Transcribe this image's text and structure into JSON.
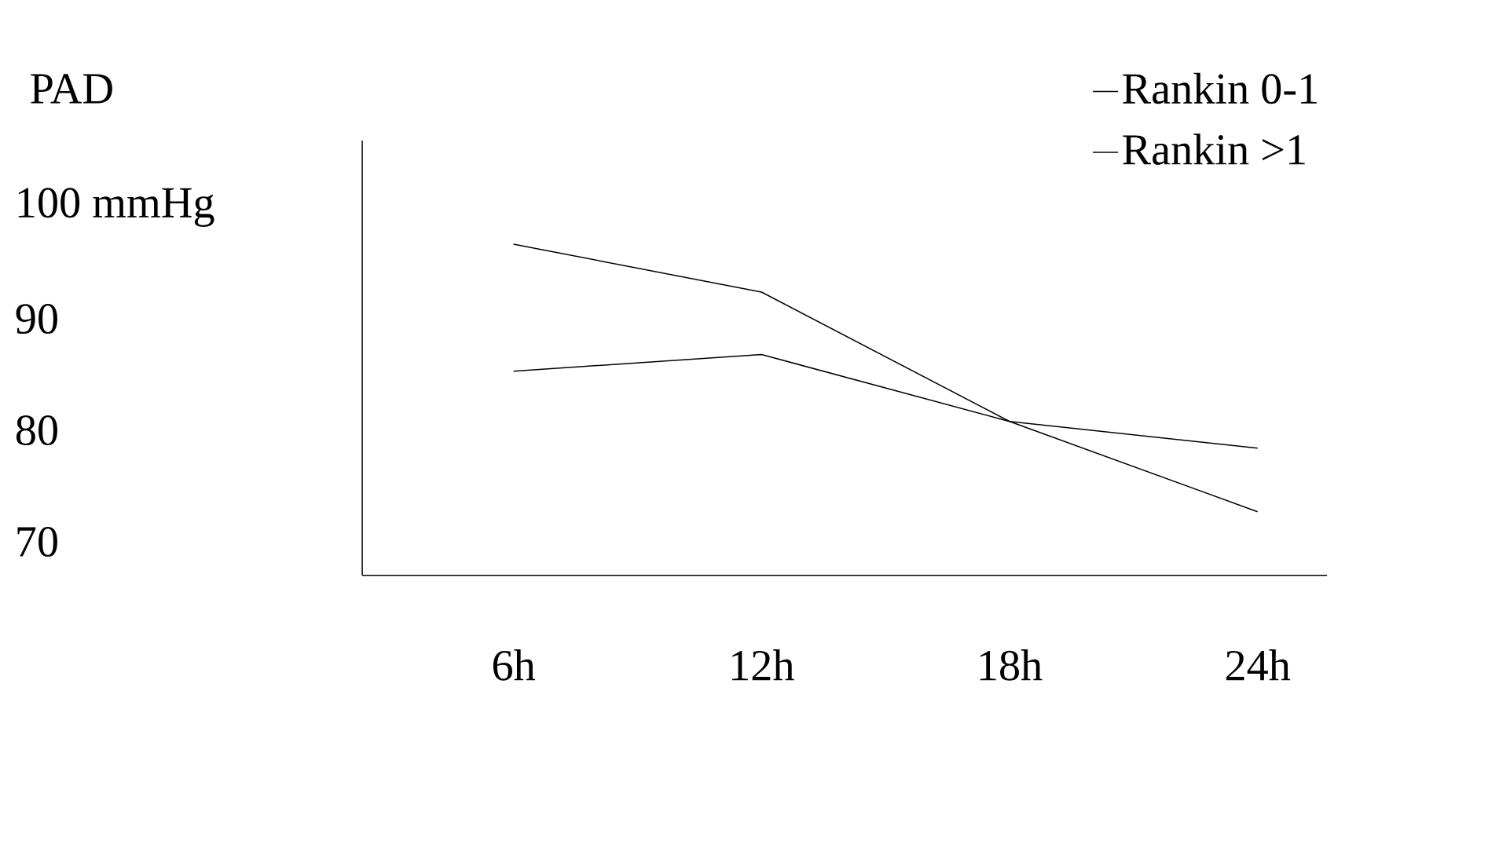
{
  "chart_data": {
    "type": "line",
    "ylabel": "PAD",
    "categories": [
      "6h",
      "12h",
      "18h",
      "24h"
    ],
    "series": [
      {
        "name": "Rankin 0-1",
        "color": "#000000",
        "values": [
          96.7,
          92.4,
          80.8,
          72.7
        ]
      },
      {
        "name": "Rankin >1",
        "color": "#000000",
        "values": [
          85.3,
          86.8,
          80.8,
          78.4
        ]
      }
    ],
    "ylim": [
      67,
      106
    ],
    "yticks": [
      {
        "value": 100,
        "label": "100 mmHg"
      },
      90,
      80,
      70
    ],
    "legend": "top right",
    "marker": "none",
    "line_style": "solid",
    "grid": false
  }
}
